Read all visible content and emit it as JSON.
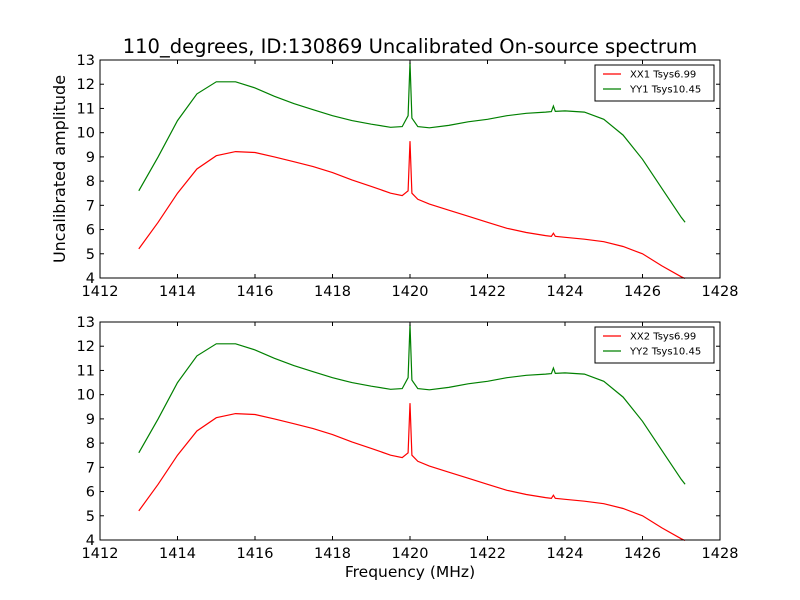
{
  "figure": {
    "title": "110_degrees, ID:130869 Uncalibrated On-source spectrum",
    "ylabel": "Uncalibrated amplitude",
    "xlabel": "Frequency (MHz)"
  },
  "chart_data": [
    {
      "type": "line",
      "title": "110_degrees, ID:130869 Uncalibrated On-source spectrum",
      "xlabel": "",
      "ylabel": "Uncalibrated amplitude",
      "xlim": [
        1412,
        1428
      ],
      "ylim": [
        4,
        13
      ],
      "xticks": [
        1412,
        1414,
        1416,
        1418,
        1420,
        1422,
        1424,
        1426,
        1428
      ],
      "yticks": [
        4,
        5,
        6,
        7,
        8,
        9,
        10,
        11,
        12,
        13
      ],
      "grid": false,
      "legend": "top-right",
      "series": [
        {
          "name": "XX1 Tsys6.99",
          "color": "#ff0000",
          "x": [
            1413.0,
            1413.5,
            1414.0,
            1414.5,
            1415.0,
            1415.5,
            1416.0,
            1416.5,
            1417.0,
            1417.5,
            1418.0,
            1418.5,
            1419.0,
            1419.5,
            1419.8,
            1419.95,
            1420.0,
            1420.05,
            1420.2,
            1420.5,
            1421.0,
            1421.5,
            1422.0,
            1422.5,
            1423.0,
            1423.5,
            1423.65,
            1423.7,
            1423.75,
            1424.0,
            1424.5,
            1425.0,
            1425.5,
            1426.0,
            1426.5,
            1427.0,
            1427.1
          ],
          "y": [
            5.2,
            6.3,
            7.5,
            8.5,
            9.05,
            9.22,
            9.18,
            9.0,
            8.8,
            8.6,
            8.35,
            8.05,
            7.78,
            7.5,
            7.4,
            7.6,
            9.65,
            7.5,
            7.25,
            7.05,
            6.8,
            6.55,
            6.3,
            6.05,
            5.88,
            5.75,
            5.72,
            5.85,
            5.72,
            5.68,
            5.6,
            5.5,
            5.3,
            5.0,
            4.5,
            4.05,
            3.98
          ]
        },
        {
          "name": "YY1 Tsys10.45",
          "color": "#008000",
          "x": [
            1413.0,
            1413.5,
            1414.0,
            1414.5,
            1415.0,
            1415.5,
            1416.0,
            1416.5,
            1417.0,
            1417.5,
            1418.0,
            1418.5,
            1419.0,
            1419.5,
            1419.8,
            1419.95,
            1420.0,
            1420.05,
            1420.2,
            1420.5,
            1421.0,
            1421.5,
            1422.0,
            1422.5,
            1423.0,
            1423.5,
            1423.65,
            1423.7,
            1423.75,
            1424.0,
            1424.5,
            1425.0,
            1425.5,
            1426.0,
            1426.5,
            1427.0,
            1427.1
          ],
          "y": [
            7.6,
            9.0,
            10.5,
            11.6,
            12.1,
            12.1,
            11.85,
            11.5,
            11.2,
            10.95,
            10.7,
            10.5,
            10.35,
            10.22,
            10.25,
            10.7,
            12.9,
            10.6,
            10.25,
            10.2,
            10.3,
            10.45,
            10.55,
            10.7,
            10.8,
            10.85,
            10.87,
            11.1,
            10.88,
            10.9,
            10.85,
            10.55,
            9.9,
            8.9,
            7.7,
            6.5,
            6.3
          ]
        }
      ]
    },
    {
      "type": "line",
      "title": "",
      "xlabel": "Frequency (MHz)",
      "ylabel": "",
      "xlim": [
        1412,
        1428
      ],
      "ylim": [
        4,
        13
      ],
      "xticks": [
        1412,
        1414,
        1416,
        1418,
        1420,
        1422,
        1424,
        1426,
        1428
      ],
      "yticks": [
        4,
        5,
        6,
        7,
        8,
        9,
        10,
        11,
        12,
        13
      ],
      "grid": false,
      "legend": "top-right",
      "series": [
        {
          "name": "XX2 Tsys6.99",
          "color": "#ff0000",
          "x": [
            1413.0,
            1413.5,
            1414.0,
            1414.5,
            1415.0,
            1415.5,
            1416.0,
            1416.5,
            1417.0,
            1417.5,
            1418.0,
            1418.5,
            1419.0,
            1419.5,
            1419.8,
            1419.95,
            1420.0,
            1420.05,
            1420.2,
            1420.5,
            1421.0,
            1421.5,
            1422.0,
            1422.5,
            1423.0,
            1423.5,
            1423.65,
            1423.7,
            1423.75,
            1424.0,
            1424.5,
            1425.0,
            1425.5,
            1426.0,
            1426.5,
            1427.0,
            1427.1
          ],
          "y": [
            5.2,
            6.3,
            7.5,
            8.5,
            9.05,
            9.22,
            9.18,
            9.0,
            8.8,
            8.6,
            8.35,
            8.05,
            7.78,
            7.5,
            7.4,
            7.6,
            9.65,
            7.5,
            7.25,
            7.05,
            6.8,
            6.55,
            6.3,
            6.05,
            5.88,
            5.75,
            5.72,
            5.85,
            5.72,
            5.68,
            5.6,
            5.5,
            5.3,
            5.0,
            4.5,
            4.05,
            3.98
          ]
        },
        {
          "name": "YY2 Tsys10.45",
          "color": "#008000",
          "x": [
            1413.0,
            1413.5,
            1414.0,
            1414.5,
            1415.0,
            1415.5,
            1416.0,
            1416.5,
            1417.0,
            1417.5,
            1418.0,
            1418.5,
            1419.0,
            1419.5,
            1419.8,
            1419.95,
            1420.0,
            1420.05,
            1420.2,
            1420.5,
            1421.0,
            1421.5,
            1422.0,
            1422.5,
            1423.0,
            1423.5,
            1423.65,
            1423.7,
            1423.75,
            1424.0,
            1424.5,
            1425.0,
            1425.5,
            1426.0,
            1426.5,
            1427.0,
            1427.1
          ],
          "y": [
            7.6,
            9.0,
            10.5,
            11.6,
            12.1,
            12.1,
            11.85,
            11.5,
            11.2,
            10.95,
            10.7,
            10.5,
            10.35,
            10.22,
            10.25,
            10.7,
            12.9,
            10.6,
            10.25,
            10.2,
            10.3,
            10.45,
            10.55,
            10.7,
            10.8,
            10.85,
            10.87,
            11.1,
            10.88,
            10.9,
            10.85,
            10.55,
            9.9,
            8.9,
            7.7,
            6.5,
            6.3
          ]
        }
      ]
    }
  ]
}
